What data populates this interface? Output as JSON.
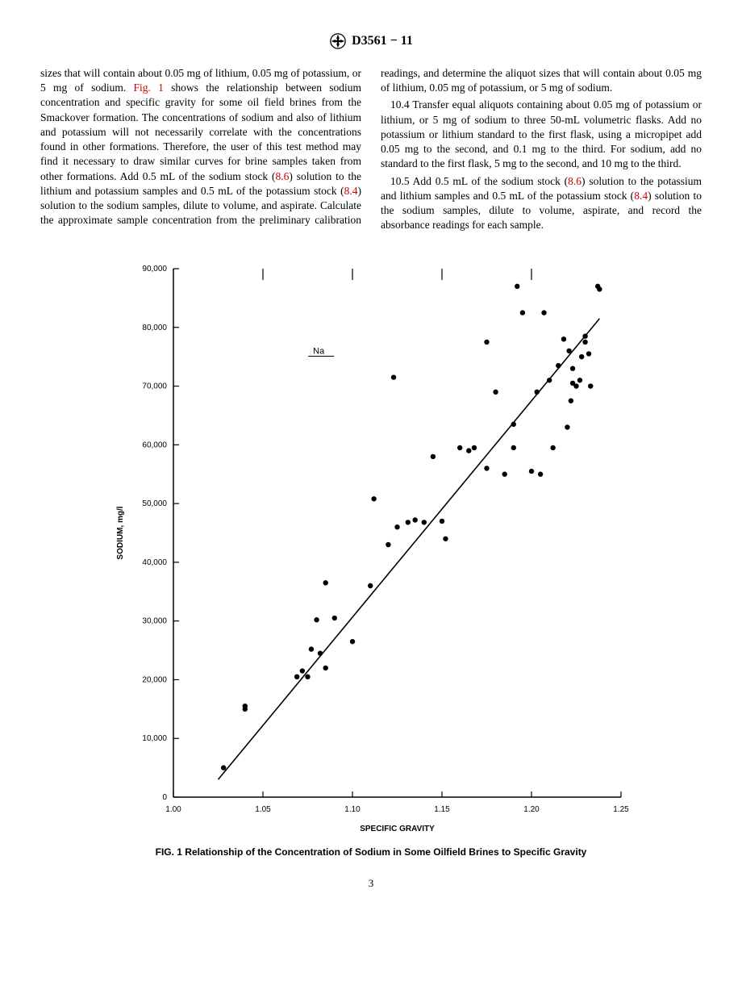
{
  "header": {
    "doc_id": "D3561 − 11"
  },
  "text": {
    "p1a": "sizes that will contain about 0.05 mg of lithium, 0.05 mg of potassium, or 5 mg of sodium. ",
    "p1_figref": "Fig. 1",
    "p1b": " shows the relationship between sodium concentration and specific gravity for some oil field brines from the Smackover formation. The concentrations of sodium and also of lithium and potassium will not necessarily correlate with the concentrations found in other formations. Therefore, the user of this test method may find it necessary to draw similar curves for brine samples taken from other formations. Add 0.5 mL of the sodium stock (",
    "p1_ref86": "8.6",
    "p1c": ") solution to the lithium and potassium samples and 0.5 mL of the potassium stock (",
    "p1_ref84": "8.4",
    "p1d": ") solution to the sodium samples, dilute to volume, and aspirate. Calculate the approximate sample concentration from the preliminary calibration readings, and determine the aliquot sizes that will contain about 0.05 mg of lithium, 0.05 mg of potassium, or 5 mg of sodium.",
    "p2": "10.4 Transfer equal aliquots containing about 0.05 mg of potassium or lithium, or 5 mg of sodium to three 50-mL volumetric flasks. Add no potassium or lithium standard to the first flask, using a micropipet add 0.05 mg to the second, and 0.1 mg to the third. For sodium, add no standard to the first flask, 5 mg to the second, and 10 mg to the third.",
    "p3a": "10.5 Add 0.5 mL of the sodium stock (",
    "p3_ref86": "8.6",
    "p3b": ") solution to the potassium and lithium samples and 0.5 mL of the potassium stock (",
    "p3_ref84": "8.4",
    "p3c": ") solution to the sodium samples, dilute to volume, aspirate, and record the absorbance readings for each sample."
  },
  "figure": {
    "caption": "FIG. 1  Relationship of the Concentration of Sodium in Some Oilfield Brines to Specific Gravity",
    "ylabel": "SODIUM, mg/l",
    "xlabel": "SPECIFIC GRAVITY",
    "legend": "Na",
    "y_ticks": [
      0,
      10000,
      20000,
      30000,
      40000,
      50000,
      60000,
      70000,
      80000,
      90000
    ],
    "y_ticklabels": [
      "0",
      "10,000",
      "20,000",
      "30,000",
      "40,000",
      "50,000",
      "60,000",
      "70,000",
      "80,000",
      "90,000"
    ],
    "x_ticks": [
      1.0,
      1.05,
      1.1,
      1.15,
      1.2,
      1.25
    ],
    "x_ticklabels": [
      "1.00",
      "1.05",
      "1.10",
      "1.15",
      "1.20",
      "1.25"
    ],
    "xlim": [
      1.0,
      1.25
    ],
    "ylim": [
      0,
      90000
    ],
    "axis_fontsize": 10,
    "label_fontsize": 10,
    "marker_radius": 3.2,
    "marker_color": "#000000",
    "line_color": "#000000",
    "line_width": 1.6,
    "axis_color": "#000000",
    "background_color": "#ffffff",
    "trend_line": {
      "x1": 1.025,
      "y1": 3000,
      "x2": 1.238,
      "y2": 81500
    },
    "points": [
      [
        1.028,
        5000
      ],
      [
        1.04,
        15500
      ],
      [
        1.04,
        15000
      ],
      [
        1.069,
        20500
      ],
      [
        1.072,
        21500
      ],
      [
        1.075,
        20500
      ],
      [
        1.077,
        25200
      ],
      [
        1.082,
        24500
      ],
      [
        1.085,
        22000
      ],
      [
        1.085,
        36500
      ],
      [
        1.08,
        30200
      ],
      [
        1.09,
        30500
      ],
      [
        1.1,
        26500
      ],
      [
        1.11,
        36000
      ],
      [
        1.112,
        50800
      ],
      [
        1.12,
        43000
      ],
      [
        1.125,
        46000
      ],
      [
        1.123,
        71500
      ],
      [
        1.131,
        46800
      ],
      [
        1.135,
        47200
      ],
      [
        1.14,
        46800
      ],
      [
        1.145,
        58000
      ],
      [
        1.15,
        47000
      ],
      [
        1.152,
        44000
      ],
      [
        1.16,
        59500
      ],
      [
        1.165,
        59000
      ],
      [
        1.168,
        59500
      ],
      [
        1.175,
        56000
      ],
      [
        1.175,
        77500
      ],
      [
        1.18,
        69000
      ],
      [
        1.185,
        55000
      ],
      [
        1.19,
        59500
      ],
      [
        1.19,
        63500
      ],
      [
        1.192,
        87000
      ],
      [
        1.195,
        82500
      ],
      [
        1.2,
        55500
      ],
      [
        1.203,
        69000
      ],
      [
        1.205,
        55000
      ],
      [
        1.207,
        82500
      ],
      [
        1.21,
        71000
      ],
      [
        1.212,
        59500
      ],
      [
        1.215,
        73500
      ],
      [
        1.218,
        78000
      ],
      [
        1.22,
        63000
      ],
      [
        1.221,
        76000
      ],
      [
        1.222,
        67500
      ],
      [
        1.223,
        70500
      ],
      [
        1.223,
        73000
      ],
      [
        1.225,
        70000
      ],
      [
        1.227,
        71000
      ],
      [
        1.228,
        75000
      ],
      [
        1.23,
        77500
      ],
      [
        1.23,
        78500
      ],
      [
        1.232,
        75500
      ],
      [
        1.233,
        70000
      ],
      [
        1.237,
        87000
      ],
      [
        1.238,
        86500
      ]
    ]
  },
  "pagenum": "3"
}
